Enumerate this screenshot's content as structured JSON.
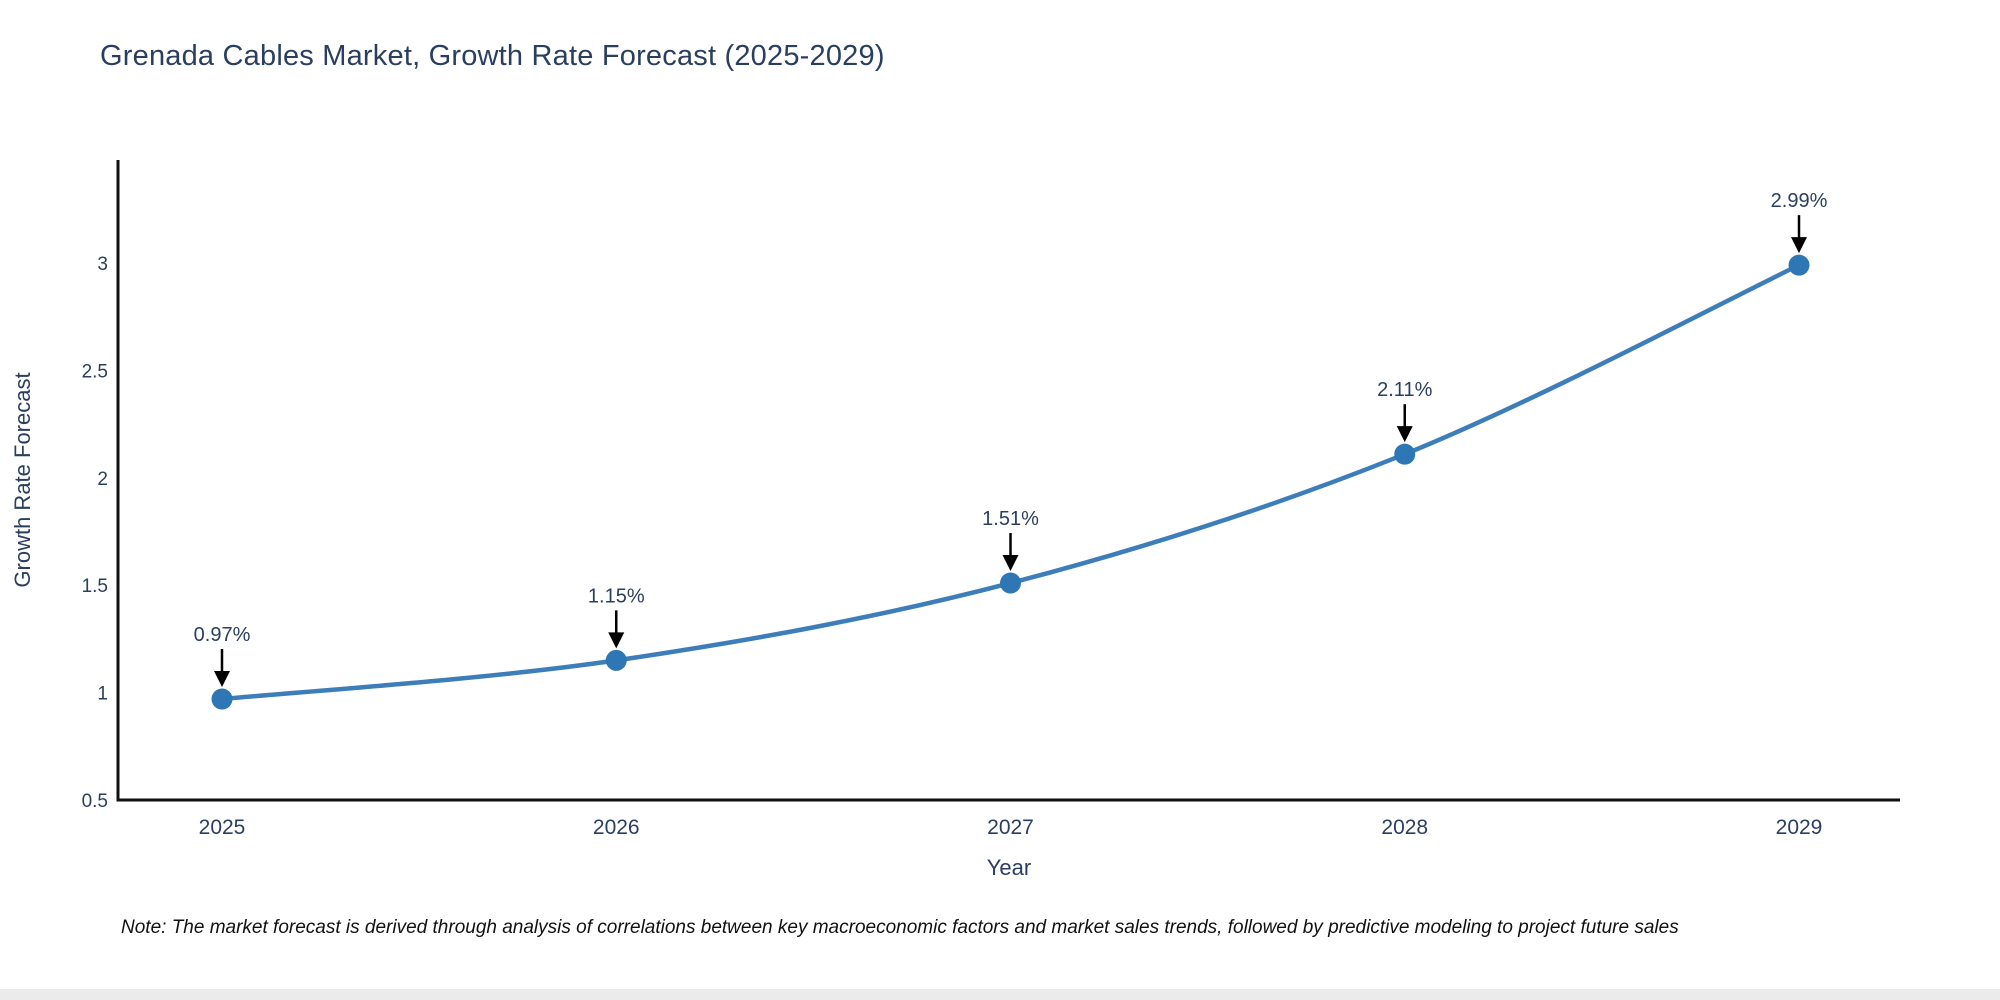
{
  "title": "Grenada Cables Market, Growth Rate Forecast (2025-2029)",
  "note": "Note: The market forecast is derived through analysis of correlations between key macroeconomic factors and market sales trends, followed by predictive modeling to project future sales",
  "chart_data": {
    "type": "line",
    "title": "Grenada Cables Market, Growth Rate Forecast (2025-2029)",
    "categories": [
      "2025",
      "2026",
      "2027",
      "2028",
      "2029"
    ],
    "values": [
      0.97,
      1.15,
      1.51,
      2.11,
      2.99
    ],
    "point_labels": [
      "0.97%",
      "1.15%",
      "1.51%",
      "2.11%",
      "2.99%"
    ],
    "xlabel": "Year",
    "ylabel": "Growth Rate Forecast",
    "ylim": [
      0.5,
      3.5
    ],
    "yticks": [
      0.5,
      1,
      1.5,
      2,
      2.5,
      3
    ],
    "ytick_labels": [
      "0.5",
      "1",
      "1.5",
      "2",
      "2.5",
      "3"
    ],
    "grid": false,
    "legend_position": "none",
    "colors": {
      "line": "#3d7dba",
      "marker": "#2e76b4",
      "axis": "#111111",
      "text": "#2a3f5f",
      "arrow": "#000000"
    }
  }
}
